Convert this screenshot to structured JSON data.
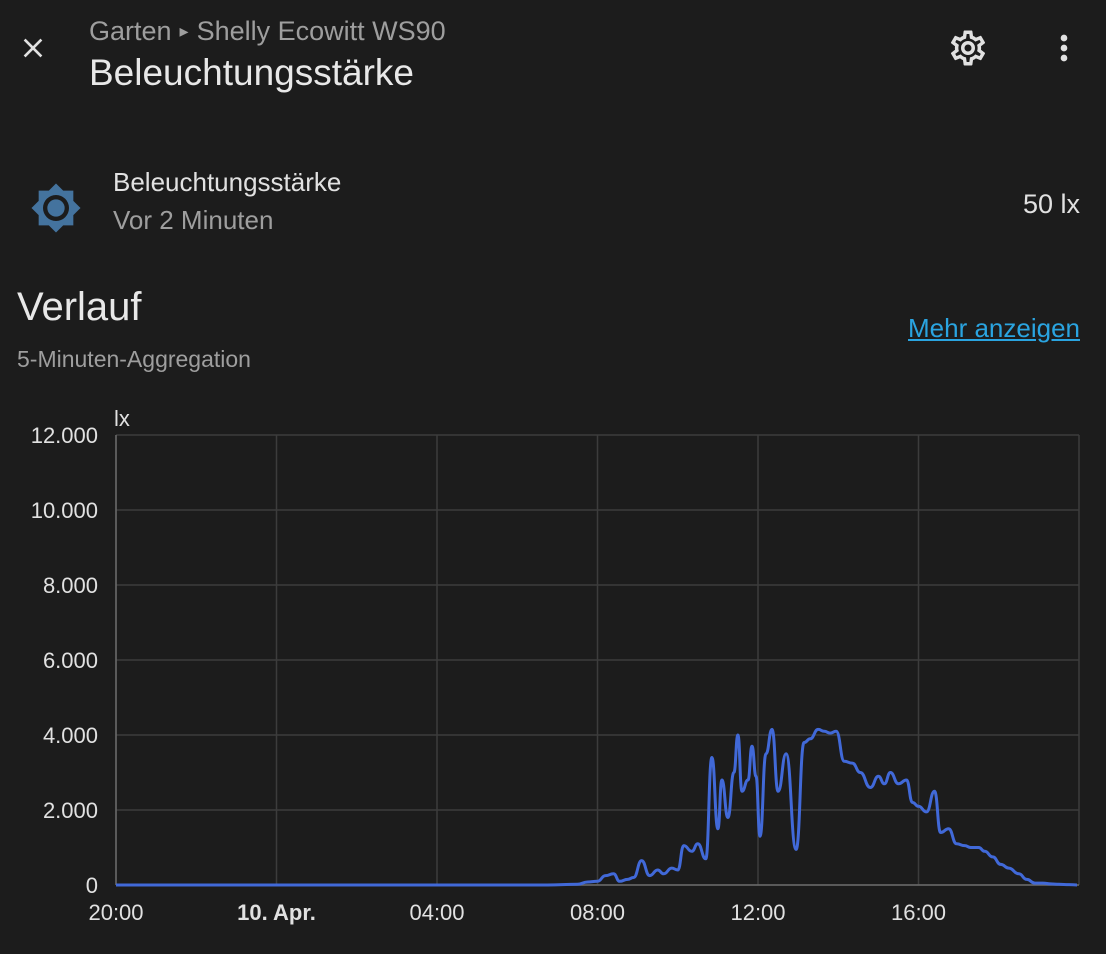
{
  "header": {
    "breadcrumb_area": "Garten",
    "breadcrumb_separator": "▸",
    "breadcrumb_device": "Shelly Ecowitt WS90",
    "title": "Beleuchtungsstärke",
    "close_icon": "close-icon",
    "settings_icon": "gear-icon",
    "menu_icon": "dots-vertical-icon"
  },
  "entity": {
    "icon": "brightness-icon",
    "icon_color": "#44739e",
    "name": "Beleuchtungsstärke",
    "last_changed": "Vor 2 Minuten",
    "state": "50 lx"
  },
  "history": {
    "title": "Verlauf",
    "subtitle": "5-Minuten-Aggregation",
    "more_label": "Mehr anzeigen",
    "link_color": "#2aa4e0"
  },
  "chart_data": {
    "type": "line",
    "ylabel": "lx",
    "ylim": [
      0,
      12000
    ],
    "yticks": [
      0,
      2000,
      4000,
      6000,
      8000,
      10000,
      12000
    ],
    "ytick_labels": [
      "0",
      "2.000",
      "4.000",
      "6.000",
      "8.000",
      "10.000",
      "12.000"
    ],
    "xlim": [
      20.0,
      44.0
    ],
    "xticks": [
      20,
      24,
      28,
      32,
      36,
      40
    ],
    "xtick_labels": [
      "20:00",
      "10. Apr.",
      "04:00",
      "08:00",
      "12:00",
      "16:00"
    ],
    "xtick_bold": [
      false,
      true,
      false,
      false,
      false,
      false
    ],
    "grid": true,
    "line_color": "#4169d8",
    "series": [
      {
        "x": [
          20.0,
          24.0,
          28.0,
          30.75,
          31.5,
          31.75,
          32.0,
          32.2,
          32.4,
          32.55,
          32.75,
          32.9,
          33.1,
          33.3,
          33.5,
          33.65,
          33.85,
          34.0,
          34.15,
          34.35,
          34.5,
          34.7,
          34.85,
          35.0,
          35.1,
          35.25,
          35.4,
          35.5,
          35.6,
          35.75,
          35.85,
          35.95,
          36.05,
          36.2,
          36.35,
          36.5,
          36.7,
          36.95,
          37.15,
          37.3,
          37.5,
          37.65,
          37.8,
          37.95,
          38.15,
          38.35,
          38.55,
          38.8,
          39.0,
          39.15,
          39.3,
          39.5,
          39.7,
          39.85,
          40.0,
          40.2,
          40.4,
          40.55,
          40.75,
          40.95,
          41.15,
          41.3,
          41.5,
          41.65,
          41.85,
          42.05,
          42.25,
          42.5,
          42.7,
          42.9,
          43.1,
          43.3,
          43.5,
          43.75,
          43.95
        ],
        "y": [
          0,
          0,
          0,
          0,
          20,
          80,
          100,
          250,
          300,
          100,
          150,
          200,
          650,
          250,
          400,
          300,
          450,
          400,
          1050,
          900,
          1100,
          700,
          3400,
          1500,
          2800,
          1800,
          3000,
          4000,
          2500,
          2800,
          3700,
          2900,
          1300,
          3500,
          4150,
          2500,
          3500,
          950,
          3800,
          3900,
          4150,
          4100,
          4050,
          4100,
          3300,
          3250,
          3000,
          2600,
          2900,
          2700,
          3000,
          2700,
          2800,
          2200,
          2100,
          1950,
          2500,
          1400,
          1500,
          1100,
          1050,
          1000,
          1000,
          900,
          750,
          550,
          450,
          300,
          150,
          50,
          50,
          30,
          20,
          10,
          0
        ]
      }
    ]
  }
}
